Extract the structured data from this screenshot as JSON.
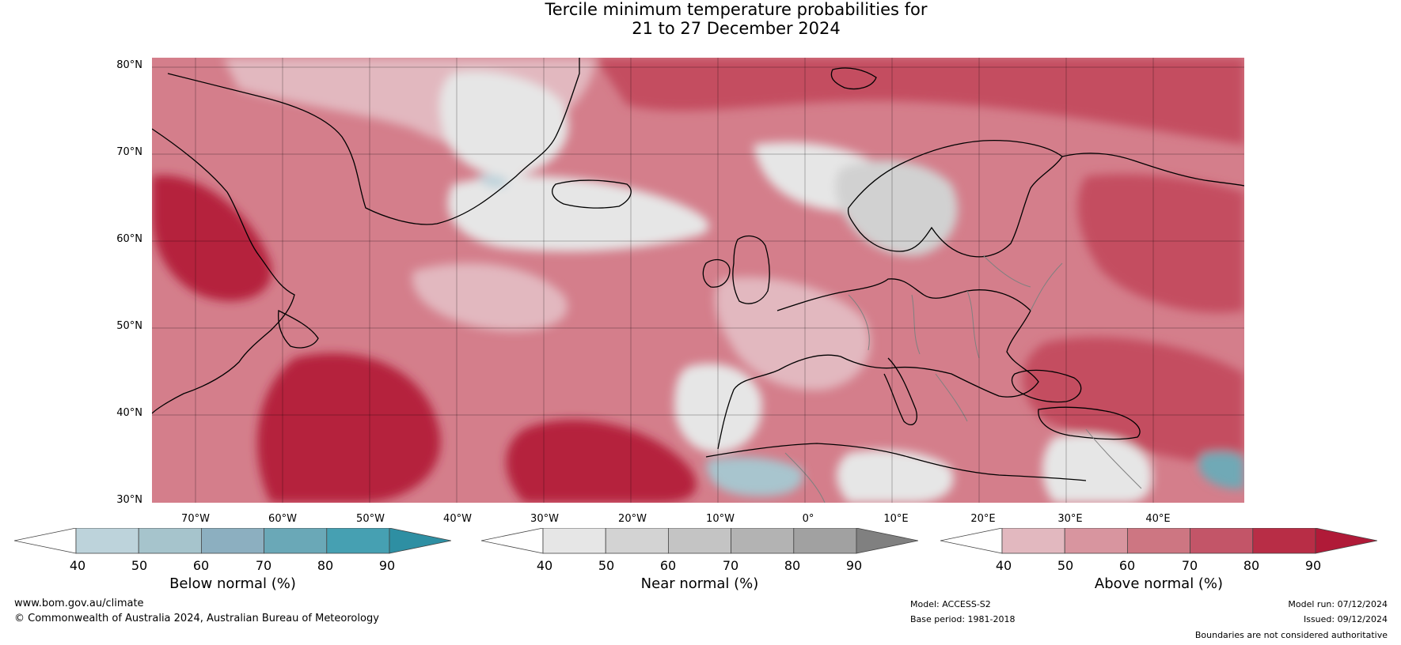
{
  "title": {
    "line1": "Tercile minimum temperature probabilities for",
    "line2": "21 to 27 December 2024"
  },
  "map": {
    "latitude_labels": [
      "80°N",
      "70°N",
      "60°N",
      "50°N",
      "40°N",
      "30°N"
    ],
    "longitude_labels": [
      "70°W",
      "60°W",
      "50°W",
      "40°W",
      "30°W",
      "20°W",
      "10°W",
      "0°",
      "10°E",
      "20°E",
      "30°E",
      "40°E"
    ],
    "colors": {
      "water_base": "#d47e8b",
      "above": [
        "#e2b8bf",
        "#d8959f",
        "#cc7280",
        "#c44d61",
        "#b5233e",
        "#a21732"
      ],
      "near": [
        "#e6e6e6",
        "#d1d1d1",
        "#c0c0c0",
        "#b3b3b3",
        "#9e9e9e",
        "#808080"
      ],
      "below": [
        "#bdd3db",
        "#a8c5ce",
        "#8fb4c2",
        "#6fa9b6",
        "#4aa0b1",
        "#2e8fa3"
      ]
    }
  },
  "colorbars": [
    {
      "name": "below",
      "label": "Below normal (%)",
      "ticks": [
        "40",
        "50",
        "60",
        "70",
        "80",
        "90"
      ],
      "colors": [
        "#ffffff",
        "#bdd3db",
        "#a6c4cc",
        "#8cafc0",
        "#6aa8b7",
        "#46a0b2",
        "#2e8fa3"
      ]
    },
    {
      "name": "near",
      "label": "Near normal (%)",
      "ticks": [
        "40",
        "50",
        "60",
        "70",
        "80",
        "90"
      ],
      "colors": [
        "#ffffff",
        "#e6e6e6",
        "#d3d3d3",
        "#c4c4c4",
        "#b3b3b3",
        "#a1a1a1",
        "#808080"
      ]
    },
    {
      "name": "above",
      "label": "Above normal (%)",
      "ticks": [
        "40",
        "50",
        "60",
        "70",
        "80",
        "90"
      ],
      "colors": [
        "#ffffff",
        "#e2b8bf",
        "#d8959f",
        "#cd7682",
        "#c35568",
        "#b82d46",
        "#b01a38"
      ]
    }
  ],
  "footer": {
    "website": "www.bom.gov.au/climate",
    "copyright": "© Commonwealth of Australia 2024, Australian Bureau of Meteorology",
    "model": "Model: ACCESS-S2",
    "base_period": "Base period: 1981-2018",
    "model_run": "Model run: 07/12/2024",
    "issued": "Issued: 09/12/2024",
    "disclaimer": "Boundaries are not considered authoritative"
  }
}
